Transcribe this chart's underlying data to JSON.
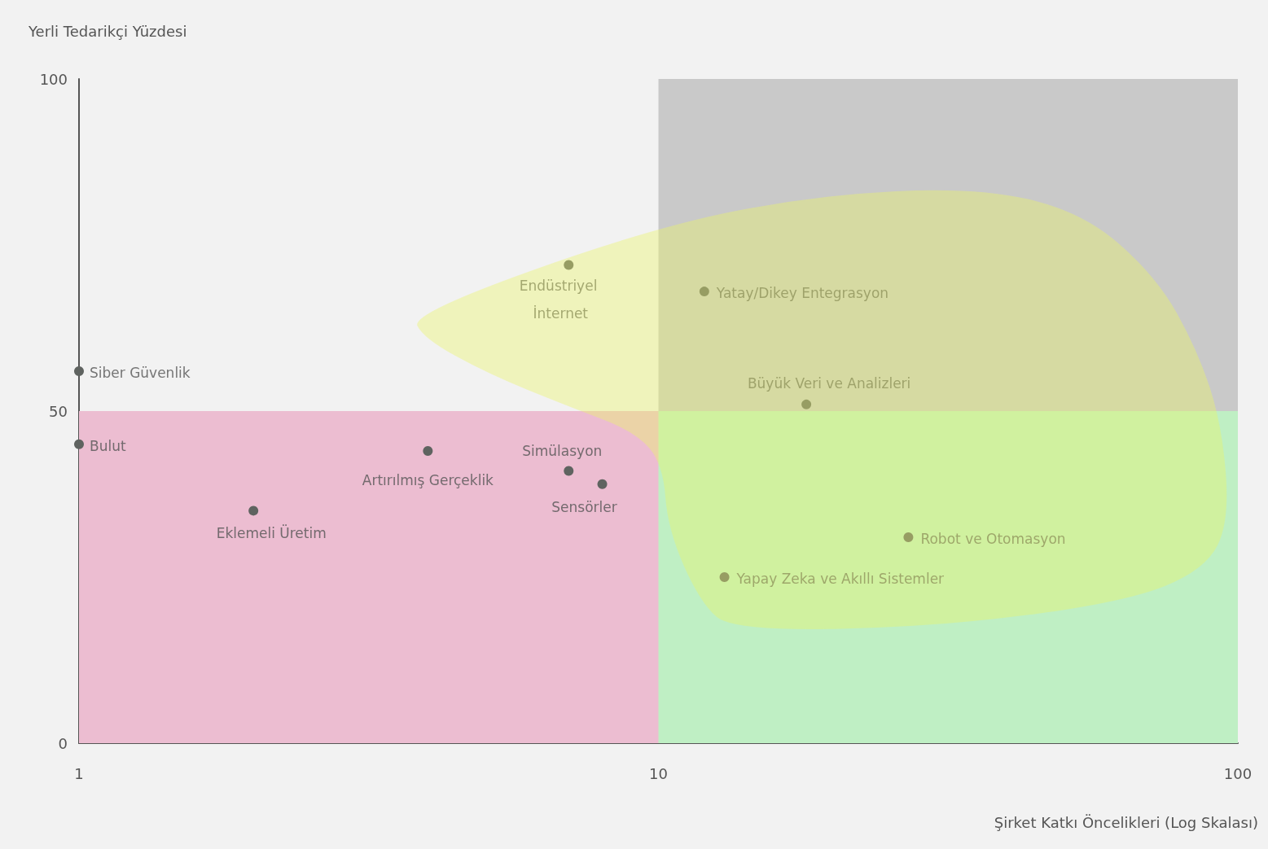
{
  "chart_data": {
    "type": "scatter",
    "xlabel": "Şirket Katkı Öncelikleri (Log Skalası)",
    "ylabel": "Yerli Tedarikçi Yüzdesi",
    "log": "x",
    "xlim": [
      1,
      100
    ],
    "xticks": [
      1,
      10,
      100
    ],
    "ylim": [
      0,
      100
    ],
    "yticks": [
      0,
      50,
      100
    ],
    "grid": false,
    "marker": "circle",
    "x": [
      1,
      1,
      2,
      4,
      7,
      8,
      7,
      12,
      18,
      27,
      13
    ],
    "series": [
      {
        "color": "#5f6360",
        "values": [
          56,
          45,
          35,
          44,
          41,
          39,
          72,
          68,
          51,
          31,
          25
        ]
      }
    ],
    "bands": [
      {
        "axis": "x",
        "from": 10,
        "to": 100,
        "color": "#c9c9c9"
      },
      {
        "axis": "y",
        "from": 0,
        "to": 50,
        "color": "#ecbdd1"
      },
      {
        "axis": "x",
        "from": 10,
        "to": 100,
        "color": "#bfefc4"
      }
    ],
    "annotations": [
      {
        "text": "Siber Güvenlik",
        "x": 1,
        "y": 56
      },
      {
        "text": "Bulut",
        "x": 1,
        "y": 45
      },
      {
        "text": "Eklemeli Üretim",
        "x": 2,
        "y": 35
      },
      {
        "text": "Artırılmış Gerçeklik",
        "x": 4,
        "y": 44
      },
      {
        "text": "Simülasyon",
        "x": 7,
        "y": 41
      },
      {
        "text": "Sensörler",
        "x": 8,
        "y": 39
      },
      {
        "text": "Endüstriyel İnternet",
        "x": 7,
        "y": 72
      },
      {
        "text": "Yatay/Dikey Entegrasyon",
        "x": 12,
        "y": 68
      },
      {
        "text": "Büyük Veri ve Analizleri",
        "x": 18,
        "y": 51
      },
      {
        "text": "Robot ve Otomasyon",
        "x": 27,
        "y": 31
      },
      {
        "text": "Yapay Zeka ve Akıllı Sistemler",
        "x": 13,
        "y": 25
      }
    ]
  }
}
